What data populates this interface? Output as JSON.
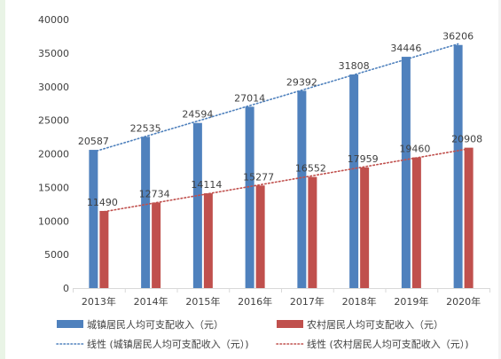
{
  "chart_data": {
    "type": "bar",
    "categories": [
      "2013年",
      "2014年",
      "2015年",
      "2016年",
      "2017年",
      "2018年",
      "2019年",
      "2020年"
    ],
    "series": [
      {
        "name": "城镇居民人均可支配收入（元）",
        "color": "#4f81bd",
        "values": [
          20587,
          22535,
          24594,
          27014,
          29392,
          31808,
          34446,
          36206
        ],
        "labels": [
          "20587",
          "22535",
          "24594",
          "27014",
          "29392",
          "31808",
          "34446",
          "36206"
        ]
      },
      {
        "name": "农村居民人均可支配收入（元）",
        "color": "#c0504d",
        "values": [
          11490,
          12734,
          14114,
          15277,
          16552,
          17959,
          19460,
          20908
        ],
        "labels": [
          "11490",
          "12734",
          "14114",
          "15277",
          "16552",
          "17959",
          "19460",
          "20908"
        ]
      }
    ],
    "trendlines": [
      {
        "name": "线性 (城镇居民人均可支配收入（元）)",
        "series_index": 0,
        "color": "#4f81bd",
        "style": "dotted"
      },
      {
        "name": "线性 (农村居民人均可支配收入（元）)",
        "series_index": 1,
        "color": "#c0504d",
        "style": "dotted"
      }
    ],
    "ylim": [
      0,
      40000
    ],
    "yticks": [
      "0",
      "5000",
      "10000",
      "15000",
      "20000",
      "25000",
      "30000",
      "35000",
      "40000"
    ],
    "grid": false,
    "legend_position": "bottom",
    "title": "",
    "xlabel": "",
    "ylabel": ""
  }
}
